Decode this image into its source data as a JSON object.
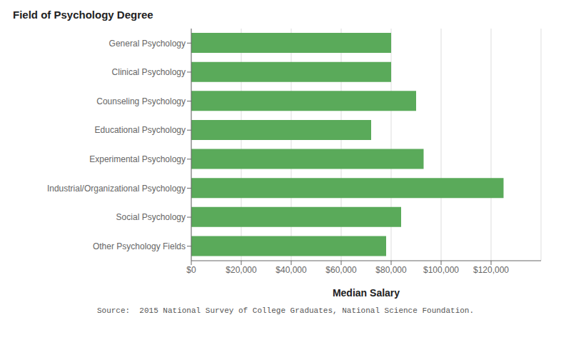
{
  "chart_data": {
    "type": "bar",
    "orientation": "horizontal",
    "title": "Field of Psychology Degree",
    "xlabel": "Median Salary",
    "categories": [
      "General Psychology",
      "Clinical Psychology",
      "Counseling Psychology",
      "Educational Psychology",
      "Experimental Psychology",
      "Industrial/Organizational Psychology",
      "Social Psychology",
      "Other Psychology Fields"
    ],
    "values": [
      80000,
      80000,
      90000,
      72000,
      93000,
      125000,
      84000,
      78000
    ],
    "color": "#5aaa5a",
    "xlim": [
      0,
      140000
    ],
    "xticks": [
      {
        "value": 0,
        "label": "$0"
      },
      {
        "value": 20000,
        "label": "$20,000"
      },
      {
        "value": 40000,
        "label": "$40,000"
      },
      {
        "value": 60000,
        "label": "$60,000"
      },
      {
        "value": 80000,
        "label": "$80,000"
      },
      {
        "value": 100000,
        "label": "$100,000"
      },
      {
        "value": 120000,
        "label": "$120,000"
      }
    ],
    "grid": true,
    "annotations": [
      "Source:  2015 National Survey of College Graduates, National Science Foundation."
    ]
  }
}
